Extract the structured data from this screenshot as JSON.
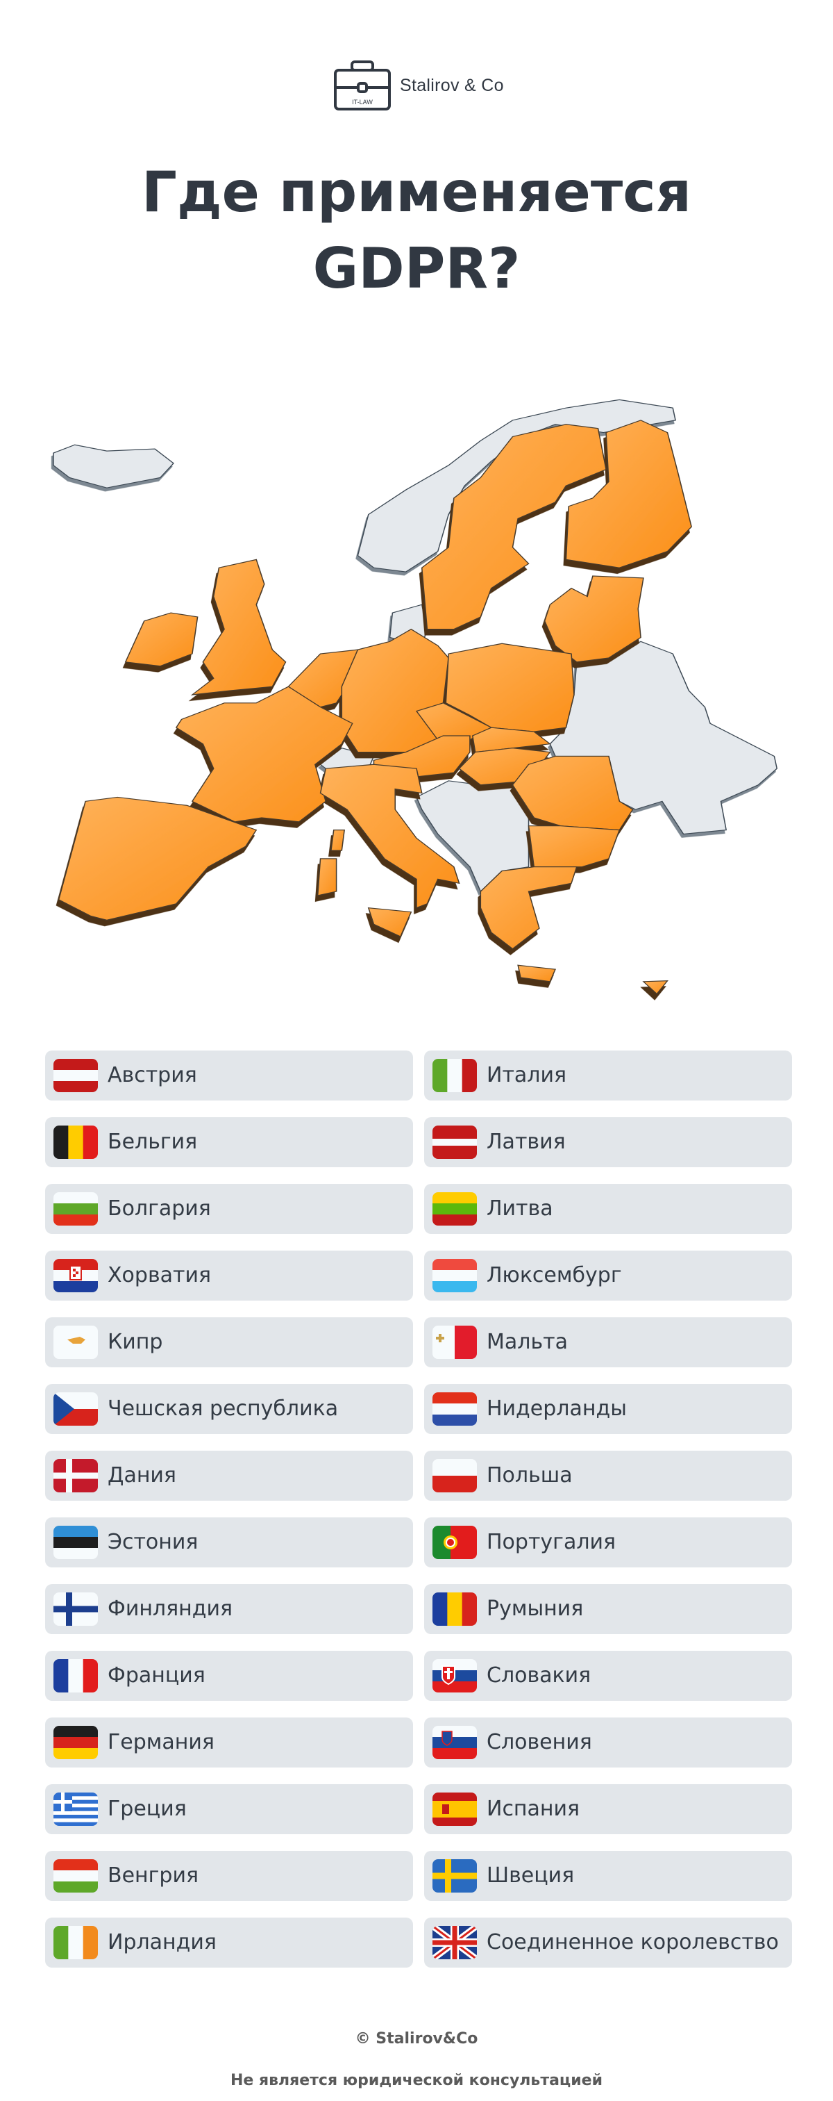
{
  "logo": {
    "name": "Stalirov & Co",
    "badge": "IT-LAW",
    "icon": "briefcase-icon"
  },
  "title": {
    "line1": "Где применяется",
    "line2": "GDPR?"
  },
  "colors": {
    "included": "#fb9a2e",
    "excluded": "#e5e9ed",
    "row_bg": "#e2e6ea",
    "text": "#313842"
  },
  "countries": {
    "left": [
      {
        "label": "Австрия",
        "flag": "flag-austria"
      },
      {
        "label": "Бельгия",
        "flag": "flag-belgium"
      },
      {
        "label": "Болгария",
        "flag": "flag-bulgaria"
      },
      {
        "label": "Хорватия",
        "flag": "flag-croatia"
      },
      {
        "label": "Кипр",
        "flag": "flag-cyprus"
      },
      {
        "label": "Чешская республика",
        "flag": "flag-czech"
      },
      {
        "label": "Дания",
        "flag": "flag-denmark"
      },
      {
        "label": "Эстония",
        "flag": "flag-estonia"
      },
      {
        "label": "Финляндия",
        "flag": "flag-finland"
      },
      {
        "label": "Франция",
        "flag": "flag-france"
      },
      {
        "label": "Германия",
        "flag": "flag-germany"
      },
      {
        "label": "Греция",
        "flag": "flag-greece"
      },
      {
        "label": "Венгрия",
        "flag": "flag-hungary"
      },
      {
        "label": "Ирландия",
        "flag": "flag-ireland"
      }
    ],
    "right": [
      {
        "label": "Италия",
        "flag": "flag-italy"
      },
      {
        "label": "Латвия",
        "flag": "flag-latvia"
      },
      {
        "label": "Литва",
        "flag": "flag-lithuania"
      },
      {
        "label": "Люксембург",
        "flag": "flag-luxembourg"
      },
      {
        "label": "Мальта",
        "flag": "flag-malta"
      },
      {
        "label": "Нидерланды",
        "flag": "flag-netherlands"
      },
      {
        "label": "Польша",
        "flag": "flag-poland"
      },
      {
        "label": "Португалия",
        "flag": "flag-portugal"
      },
      {
        "label": "Румыния",
        "flag": "flag-romania"
      },
      {
        "label": "Словакия",
        "flag": "flag-slovakia"
      },
      {
        "label": "Словения",
        "flag": "flag-slovenia"
      },
      {
        "label": "Испания",
        "flag": "flag-spain"
      },
      {
        "label": "Швеция",
        "flag": "flag-sweden"
      },
      {
        "label": "Соединенное королевство",
        "flag": "flag-uk"
      }
    ]
  },
  "footer": {
    "copyright": "© Stalirov&Co",
    "disclaimer": "Не является юридической консультацией"
  }
}
